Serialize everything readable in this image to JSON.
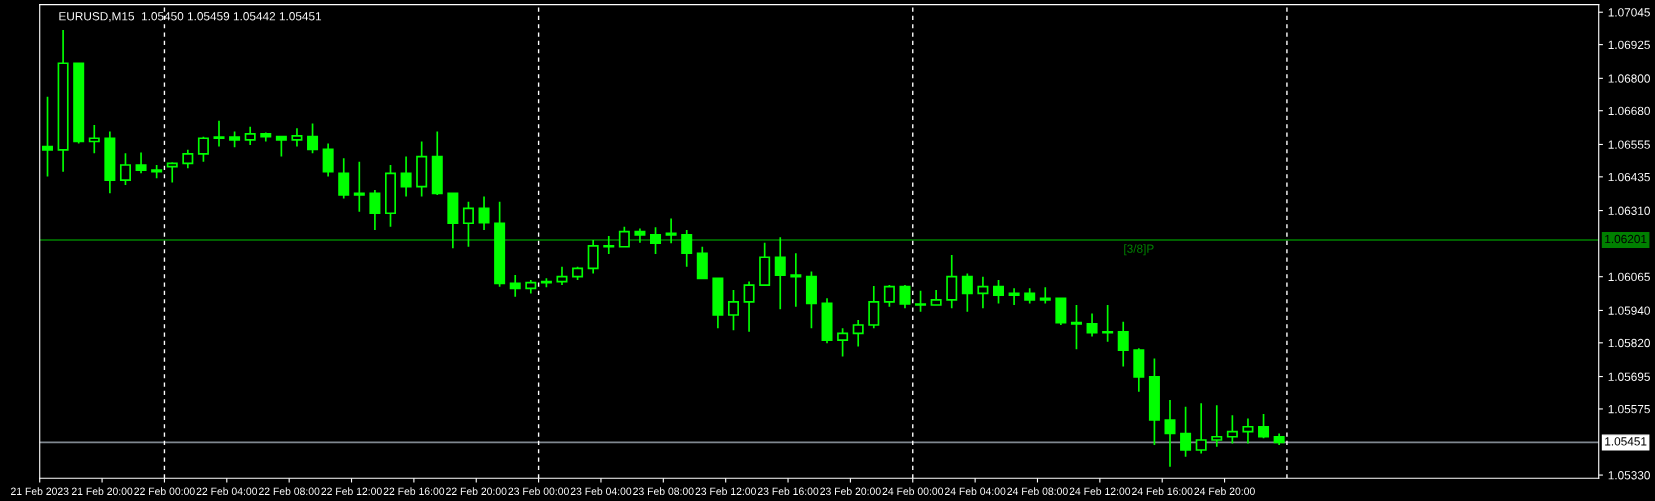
{
  "chart_data": {
    "type": "candlestick",
    "title": "EURUSD,M15  1.05450 1.05459 1.05442 1.05451",
    "x": [
      "2023-02-21T16:30",
      "2023-02-21T17:30",
      "2023-02-21T18:30",
      "2023-02-21T19:30",
      "2023-02-21T20:30",
      "2023-02-21T21:30",
      "2023-02-21T22:30",
      "2023-02-21T23:30",
      "2023-02-22T00:30",
      "2023-02-22T01:30",
      "2023-02-22T02:30",
      "2023-02-22T03:30",
      "2023-02-22T04:30",
      "2023-02-22T05:30",
      "2023-02-22T06:30",
      "2023-02-22T07:30",
      "2023-02-22T08:30",
      "2023-02-22T09:30",
      "2023-02-22T10:30",
      "2023-02-22T11:30",
      "2023-02-22T12:30",
      "2023-02-22T13:30",
      "2023-02-22T14:30",
      "2023-02-22T15:30",
      "2023-02-22T16:30",
      "2023-02-22T17:30",
      "2023-02-22T18:30",
      "2023-02-22T19:30",
      "2023-02-22T20:30",
      "2023-02-22T21:30",
      "2023-02-22T22:30",
      "2023-02-22T23:30",
      "2023-02-23T00:30",
      "2023-02-23T01:30",
      "2023-02-23T02:30",
      "2023-02-23T03:30",
      "2023-02-23T04:30",
      "2023-02-23T05:30",
      "2023-02-23T06:30",
      "2023-02-23T07:30",
      "2023-02-23T08:30",
      "2023-02-23T09:30",
      "2023-02-23T10:30",
      "2023-02-23T11:30",
      "2023-02-23T12:30",
      "2023-02-23T13:30",
      "2023-02-23T14:30",
      "2023-02-23T15:30",
      "2023-02-23T16:30",
      "2023-02-23T17:30",
      "2023-02-23T18:30",
      "2023-02-23T19:30",
      "2023-02-23T20:30",
      "2023-02-23T21:30",
      "2023-02-23T22:30",
      "2023-02-23T23:30",
      "2023-02-24T00:30",
      "2023-02-24T01:30",
      "2023-02-24T02:30",
      "2023-02-24T03:30",
      "2023-02-24T04:30",
      "2023-02-24T05:30",
      "2023-02-24T06:30",
      "2023-02-24T07:30",
      "2023-02-24T08:30",
      "2023-02-24T09:30",
      "2023-02-24T10:30",
      "2023-02-24T11:30",
      "2023-02-24T12:30",
      "2023-02-24T13:30",
      "2023-02-24T14:30",
      "2023-02-24T15:30",
      "2023-02-24T16:30",
      "2023-02-24T17:30",
      "2023-02-24T18:30",
      "2023-02-24T19:30",
      "2023-02-24T20:30",
      "2023-02-24T21:30",
      "2023-02-24T22:30",
      "2023-02-24T23:30"
    ],
    "series": [
      {
        "color": "#00ff00",
        "ohlc": [
          [
            1.06547,
            1.06732,
            1.06436,
            1.06535
          ],
          [
            1.06535,
            1.06979,
            1.06454,
            1.06856
          ],
          [
            1.06856,
            1.06856,
            1.06559,
            1.06566
          ],
          [
            1.06566,
            1.06627,
            1.06522,
            1.06578
          ],
          [
            1.06578,
            1.06603,
            1.06374,
            1.06423
          ],
          [
            1.06423,
            1.06522,
            1.06405,
            1.06479
          ],
          [
            1.06479,
            1.06525,
            1.06448,
            1.0646
          ],
          [
            1.0646,
            1.06479,
            1.0643,
            1.06454
          ],
          [
            1.06473,
            1.06488,
            1.06414,
            1.06485
          ],
          [
            1.06485,
            1.06535,
            1.06467,
            1.0652
          ],
          [
            1.0652,
            1.06584,
            1.06491,
            1.06578
          ],
          [
            1.06578,
            1.06643,
            1.06547,
            1.06582
          ],
          [
            1.06582,
            1.06603,
            1.06545,
            1.06572
          ],
          [
            1.06572,
            1.06621,
            1.06553,
            1.06594
          ],
          [
            1.06594,
            1.06599,
            1.06566,
            1.06584
          ],
          [
            1.06584,
            1.06584,
            1.0651,
            1.06572
          ],
          [
            1.06572,
            1.06615,
            1.06547,
            1.06587
          ],
          [
            1.06584,
            1.06633,
            1.06522,
            1.06537
          ],
          [
            1.06537,
            1.06559,
            1.06436,
            1.06454
          ],
          [
            1.06448,
            1.06504,
            1.06355,
            1.06368
          ],
          [
            1.06368,
            1.06491,
            1.06306,
            1.06374
          ],
          [
            1.06374,
            1.06386,
            1.06238,
            1.063
          ],
          [
            1.063,
            1.06479,
            1.0625,
            1.06448
          ],
          [
            1.06448,
            1.0651,
            1.06362,
            1.06399
          ],
          [
            1.06399,
            1.06566,
            1.06362,
            1.0651
          ],
          [
            1.0651,
            1.06603,
            1.06368,
            1.06374
          ],
          [
            1.06374,
            1.06374,
            1.0617,
            1.06263
          ],
          [
            1.06263,
            1.06343,
            1.06176,
            1.06318
          ],
          [
            1.06318,
            1.06362,
            1.06238,
            1.06265
          ],
          [
            1.06263,
            1.06343,
            1.06028,
            1.0604
          ],
          [
            1.0604,
            1.06071,
            1.05991,
            1.06022
          ],
          [
            1.06022,
            1.06053,
            1.06003,
            1.06043
          ],
          [
            1.06043,
            1.06059,
            1.06026,
            1.06047
          ],
          [
            1.06047,
            1.06102,
            1.06034,
            1.06065
          ],
          [
            1.06065,
            1.06102,
            1.06053,
            1.06096
          ],
          [
            1.06096,
            1.06201,
            1.06077,
            1.06179
          ],
          [
            1.06179,
            1.06216,
            1.06149,
            1.06176
          ],
          [
            1.06176,
            1.0625,
            1.06176,
            1.06232
          ],
          [
            1.06232,
            1.06244,
            1.06191,
            1.0622
          ],
          [
            1.0622,
            1.06248,
            1.06149,
            1.06189
          ],
          [
            1.0622,
            1.06281,
            1.06189,
            1.06226
          ],
          [
            1.0622,
            1.06238,
            1.06102,
            1.06152
          ],
          [
            1.06152,
            1.06176,
            1.06059,
            1.06059
          ],
          [
            1.06059,
            1.06059,
            1.05874,
            1.05923
          ],
          [
            1.05923,
            1.06016,
            1.05867,
            1.05972
          ],
          [
            1.05972,
            1.06047,
            1.05861,
            1.06034
          ],
          [
            1.06034,
            1.06191,
            1.06034,
            1.06137
          ],
          [
            1.06137,
            1.06211,
            1.05944,
            1.06071
          ],
          [
            1.06071,
            1.06152,
            1.05954,
            1.06065
          ],
          [
            1.06065,
            1.06084,
            1.05874,
            1.05966
          ],
          [
            1.05966,
            1.05985,
            1.05818,
            1.0583
          ],
          [
            1.0583,
            1.05874,
            1.05769,
            1.05855
          ],
          [
            1.05855,
            1.05905,
            1.05806,
            1.05886
          ],
          [
            1.05886,
            1.06031,
            1.05874,
            1.05972
          ],
          [
            1.05972,
            1.06034,
            1.05954,
            1.06028
          ],
          [
            1.06028,
            1.06034,
            1.05948,
            1.05964
          ],
          [
            1.05964,
            1.06013,
            1.05935,
            1.0596
          ],
          [
            1.0596,
            1.06016,
            1.0596,
            1.05979
          ],
          [
            1.05979,
            1.06145,
            1.05948,
            1.06065
          ],
          [
            1.06065,
            1.06077,
            1.05935,
            1.06003
          ],
          [
            1.06003,
            1.06065,
            1.05948,
            1.06028
          ],
          [
            1.06028,
            1.06053,
            1.05966,
            1.05997
          ],
          [
            1.05997,
            1.06022,
            1.0596,
            1.06003
          ],
          [
            1.06003,
            1.06022,
            1.05966,
            1.05979
          ],
          [
            1.05979,
            1.06026,
            1.05966,
            1.05985
          ],
          [
            1.05985,
            1.05985,
            1.05886,
            1.05895
          ],
          [
            1.05895,
            1.0596,
            1.05796,
            1.0589
          ],
          [
            1.0589,
            1.05929,
            1.05843,
            1.05858
          ],
          [
            1.05858,
            1.0596,
            1.05824,
            1.05861
          ],
          [
            1.05861,
            1.05898,
            1.05732,
            1.05793
          ],
          [
            1.05793,
            1.058,
            1.05639,
            1.05694
          ],
          [
            1.05694,
            1.05762,
            1.05441,
            1.05534
          ],
          [
            1.05534,
            1.05608,
            1.05361,
            1.05484
          ],
          [
            1.05484,
            1.05583,
            1.05398,
            1.05423
          ],
          [
            1.05423,
            1.05596,
            1.0541,
            1.0546
          ],
          [
            1.0546,
            1.05589,
            1.05435,
            1.05472
          ],
          [
            1.05472,
            1.05552,
            1.05447,
            1.05491
          ],
          [
            1.05491,
            1.0554,
            1.05447,
            1.05509
          ],
          [
            1.05509,
            1.05556,
            1.05466,
            1.05472
          ],
          [
            1.05472,
            1.05484,
            1.05441,
            1.05451
          ]
        ]
      }
    ],
    "xlim": [
      "2023-02-21T16:00",
      "2023-02-25T20:00"
    ],
    "xticks": [
      {
        "value": "2023-02-21T16:00",
        "label": "21 Feb 2023"
      },
      {
        "value": "2023-02-21T20:00",
        "label": "21 Feb 20:00"
      },
      {
        "value": "2023-02-22T00:00",
        "label": "22 Feb 00:00"
      },
      {
        "value": "2023-02-22T04:00",
        "label": "22 Feb 04:00"
      },
      {
        "value": "2023-02-22T08:00",
        "label": "22 Feb 08:00"
      },
      {
        "value": "2023-02-22T12:00",
        "label": "22 Feb 12:00"
      },
      {
        "value": "2023-02-22T16:00",
        "label": "22 Feb 16:00"
      },
      {
        "value": "2023-02-22T20:00",
        "label": "22 Feb 20:00"
      },
      {
        "value": "2023-02-23T00:00",
        "label": "23 Feb 00:00"
      },
      {
        "value": "2023-02-23T04:00",
        "label": "23 Feb 04:00"
      },
      {
        "value": "2023-02-23T08:00",
        "label": "23 Feb 08:00"
      },
      {
        "value": "2023-02-23T12:00",
        "label": "23 Feb 12:00"
      },
      {
        "value": "2023-02-23T16:00",
        "label": "23 Feb 16:00"
      },
      {
        "value": "2023-02-23T20:00",
        "label": "23 Feb 20:00"
      },
      {
        "value": "2023-02-24T00:00",
        "label": "24 Feb 00:00"
      },
      {
        "value": "2023-02-24T04:00",
        "label": "24 Feb 04:00"
      },
      {
        "value": "2023-02-24T08:00",
        "label": "24 Feb 08:00"
      },
      {
        "value": "2023-02-24T12:00",
        "label": "24 Feb 12:00"
      },
      {
        "value": "2023-02-24T16:00",
        "label": "24 Feb 16:00"
      },
      {
        "value": "2023-02-24T20:00",
        "label": "24 Feb 20:00"
      }
    ],
    "ylim": [
      1.05318,
      1.07073
    ],
    "yticks": [
      {
        "value": 1.0533,
        "label": "1.05330"
      },
      1.05575,
      1.05695,
      {
        "value": 1.0582,
        "label": "1.05820"
      },
      {
        "value": 1.0594,
        "label": "1.05940"
      },
      1.06065,
      {
        "value": 1.0631,
        "label": "1.06310"
      },
      1.06435,
      1.06555,
      {
        "value": 1.0668,
        "label": "1.06680"
      },
      {
        "value": 1.068,
        "label": "1.06800"
      },
      1.06925,
      1.07045
    ],
    "annotations": [
      {
        "text": "[3/8]P",
        "x": "2023-02-24T14:30",
        "y": 1.06201
      }
    ],
    "ref_lines": [
      {
        "axis": "y",
        "value": 1.06201,
        "label": "1.06201",
        "color": "#008000",
        "line_style": "solid"
      },
      {
        "axis": "y",
        "value": 1.05451,
        "label": "1.05451",
        "color": "#808890",
        "line_style": "solid"
      },
      {
        "axis": "x",
        "value": "2023-02-22T00:00",
        "color": "#ffffff",
        "line_style": "dashed"
      },
      {
        "axis": "x",
        "value": "2023-02-23T00:00",
        "color": "#ffffff",
        "line_style": "dashed"
      },
      {
        "axis": "x",
        "value": "2023-02-24T00:00",
        "color": "#ffffff",
        "line_style": "dashed"
      },
      {
        "axis": "x",
        "value": "2023-02-25T00:00",
        "color": "#ffffff",
        "line_style": "dashed"
      }
    ]
  }
}
